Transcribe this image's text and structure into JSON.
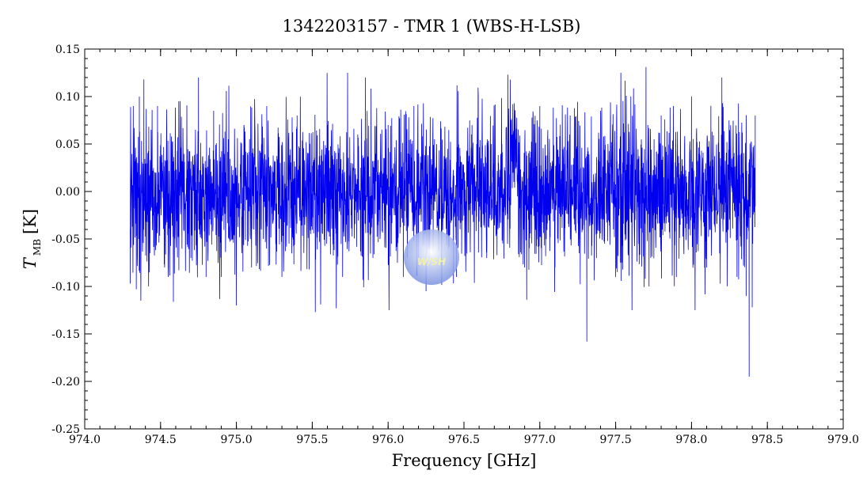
{
  "chart_data": {
    "type": "line",
    "title": "1342203157 - TMR 1 (WBS-H-LSB)",
    "xlabel": "Frequency [GHz]",
    "ylabel": {
      "symbol": "T",
      "subscript": "MB",
      "unit": "[K]"
    },
    "xlim": [
      974.0,
      979.0
    ],
    "ylim": [
      -0.25,
      0.15
    ],
    "xticks": [
      "974.0",
      "974.5",
      "975.0",
      "975.5",
      "976.0",
      "976.5",
      "977.0",
      "977.5",
      "978.0",
      "978.5",
      "979.0"
    ],
    "yticks": [
      "0.15",
      "0.10",
      "0.05",
      "0.00",
      "-0.05",
      "-0.10",
      "-0.15",
      "-0.20",
      "-0.25"
    ],
    "grid": false,
    "series": [
      {
        "color": "#0000ee",
        "x_range": [
          974.3,
          978.42
        ],
        "noise_envelope_sigma": 0.038,
        "points": [
          [
            974.3,
            -0.097
          ],
          [
            974.32,
            0.09
          ],
          [
            974.34,
            -0.103
          ],
          [
            974.36,
            0.1
          ],
          [
            974.37,
            -0.115
          ],
          [
            974.39,
            0.118
          ],
          [
            974.42,
            -0.06
          ],
          [
            974.48,
            0.09
          ],
          [
            974.55,
            -0.09
          ],
          [
            974.62,
            0.095
          ],
          [
            974.7,
            -0.07
          ],
          [
            974.75,
            0.12
          ],
          [
            974.8,
            -0.09
          ],
          [
            974.85,
            0.085
          ],
          [
            974.9,
            -0.09
          ],
          [
            974.95,
            0.1
          ],
          [
            975.0,
            -0.12
          ],
          [
            975.05,
            0.07
          ],
          [
            975.1,
            -0.08
          ],
          [
            975.2,
            0.09
          ],
          [
            975.3,
            -0.09
          ],
          [
            975.4,
            0.08
          ],
          [
            975.52,
            -0.127
          ],
          [
            975.6,
            0.07
          ],
          [
            975.7,
            -0.09
          ],
          [
            975.8,
            0.06
          ],
          [
            975.85,
            0.12
          ],
          [
            975.9,
            -0.07
          ],
          [
            976.0,
            0.07
          ],
          [
            976.1,
            -0.09
          ],
          [
            976.17,
            0.09
          ],
          [
            976.25,
            -0.105
          ],
          [
            976.35,
            0.06
          ],
          [
            976.45,
            -0.09
          ],
          [
            976.55,
            0.06
          ],
          [
            976.65,
            -0.07
          ],
          [
            976.75,
            0.05
          ],
          [
            976.79,
            0.123
          ],
          [
            976.82,
            0.06
          ],
          [
            976.9,
            -0.08
          ],
          [
            977.0,
            0.09
          ],
          [
            977.1,
            -0.08
          ],
          [
            977.2,
            0.08
          ],
          [
            977.31,
            -0.158
          ],
          [
            977.4,
            0.085
          ],
          [
            977.5,
            -0.09
          ],
          [
            977.6,
            0.1
          ],
          [
            977.7,
            0.131
          ],
          [
            977.72,
            -0.1
          ],
          [
            977.8,
            0.08
          ],
          [
            977.9,
            -0.09
          ],
          [
            978.0,
            0.1
          ],
          [
            978.1,
            -0.08
          ],
          [
            978.2,
            0.12
          ],
          [
            978.3,
            -0.09
          ],
          [
            978.36,
            -0.11
          ],
          [
            978.38,
            -0.195
          ],
          [
            978.4,
            -0.122
          ],
          [
            978.42,
            0.08
          ]
        ]
      }
    ]
  },
  "watermark": {
    "text": "W/SH",
    "color": "#7a92e0"
  }
}
